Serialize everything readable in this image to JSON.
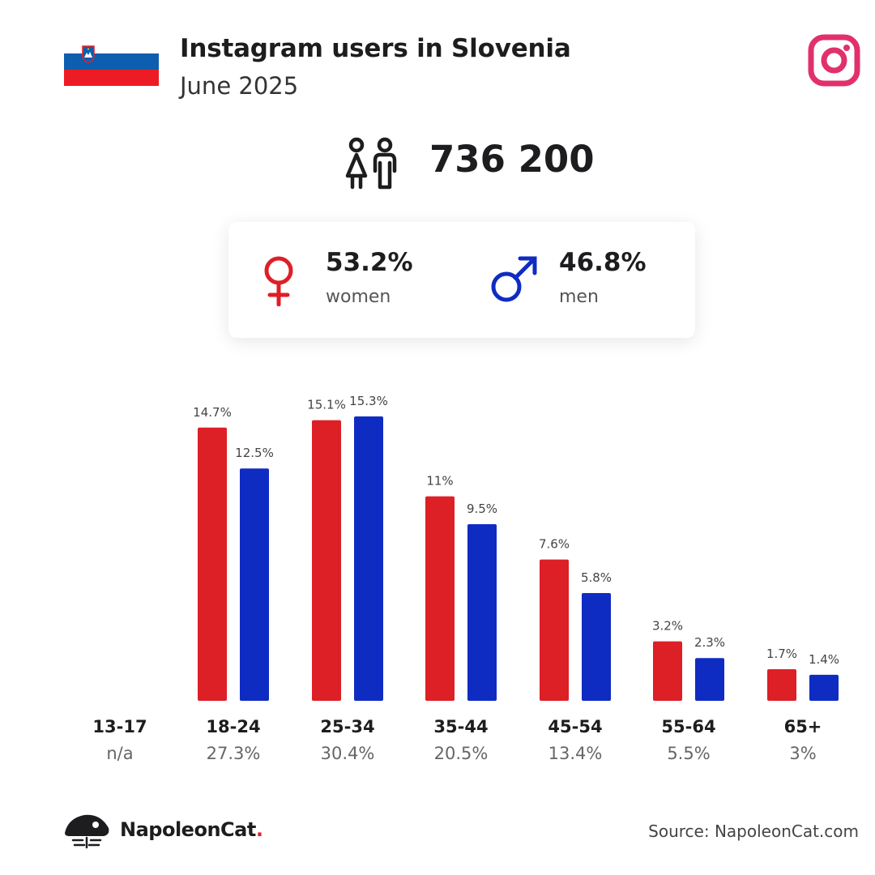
{
  "header": {
    "title": "Instagram users in Slovenia",
    "subtitle": "June 2025",
    "flag_colors": [
      "#ffffff",
      "#0d5eaf",
      "#ed1c24"
    ]
  },
  "total_users": "736 200",
  "gender": {
    "women_pct": "53.2%",
    "women_label": "women",
    "men_pct": "46.8%",
    "men_label": "men"
  },
  "colors": {
    "women": "#dd1f26",
    "men": "#0f2cc2",
    "instagram": "#e1306c"
  },
  "age_groups": [
    {
      "label": "13-17",
      "share": "n/a"
    },
    {
      "label": "18-24",
      "share": "27.3%"
    },
    {
      "label": "25-34",
      "share": "30.4%"
    },
    {
      "label": "35-44",
      "share": "20.5%"
    },
    {
      "label": "45-54",
      "share": "13.4%"
    },
    {
      "label": "55-64",
      "share": "5.5%"
    },
    {
      "label": "65+",
      "share": "3%"
    }
  ],
  "chart_data": {
    "type": "bar",
    "categories": [
      "13-17",
      "18-24",
      "25-34",
      "35-44",
      "45-54",
      "55-64",
      "65+"
    ],
    "series": [
      {
        "values": [
          null,
          14.7,
          15.1,
          11,
          7.6,
          3.2,
          1.7
        ],
        "labels": [
          "",
          "14.7%",
          "15.1%",
          "11%",
          "7.6%",
          "3.2%",
          "1.7%"
        ],
        "color": "#dd1f26"
      },
      {
        "values": [
          null,
          12.5,
          15.3,
          9.5,
          5.8,
          2.3,
          1.4
        ],
        "labels": [
          "",
          "12.5%",
          "15.3%",
          "9.5%",
          "5.8%",
          "2.3%",
          "1.4%"
        ],
        "color": "#0f2cc2"
      }
    ],
    "ylim": [
      0,
      15.3
    ],
    "grid": false
  },
  "footer": {
    "brand": "NapoleonCat",
    "brand_dot": ".",
    "source": "Source: NapoleonCat.com"
  }
}
